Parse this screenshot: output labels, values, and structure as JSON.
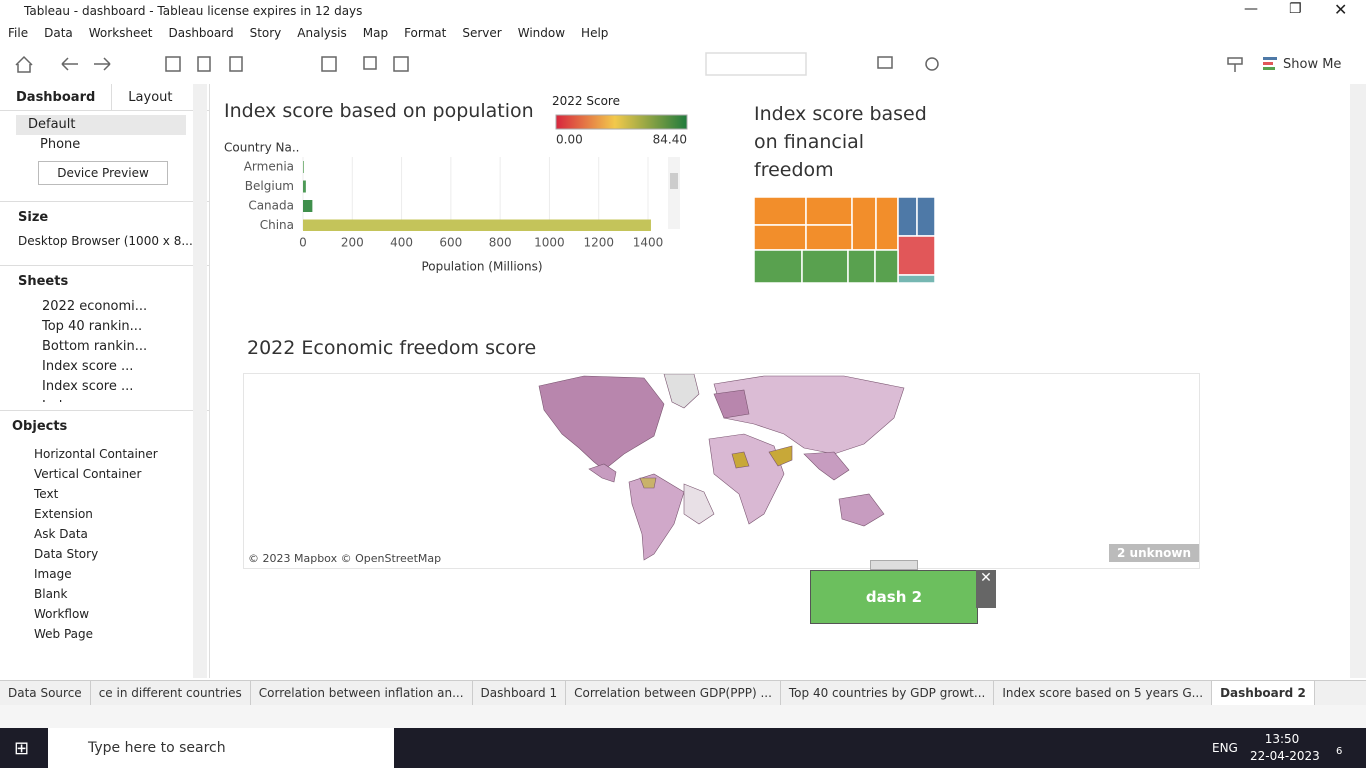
{
  "window": {
    "title": "Tableau - dashboard - Tableau license expires in 12 days"
  },
  "menu": [
    "File",
    "Data",
    "Worksheet",
    "Dashboard",
    "Story",
    "Analysis",
    "Map",
    "Format",
    "Server",
    "Window",
    "Help"
  ],
  "toolbar": {
    "show_me": "Show Me"
  },
  "side_panel": {
    "tabs": [
      "Dashboard",
      "Layout"
    ],
    "devices": [
      "Default",
      "Phone"
    ],
    "device_preview": "Device Preview",
    "size_heading": "Size",
    "size_value": "Desktop Browser (1000 x 8...",
    "sheets_heading": "Sheets",
    "sheets": [
      "2022 economi...",
      "Top  40 rankin...",
      "Bottom rankin...",
      "Index score ...",
      "Index score ...",
      "Index score"
    ],
    "objects_heading": "Objects",
    "objects": [
      "Horizontal Container",
      "Vertical Container",
      "Text",
      "Extension",
      "Ask Data",
      "Data Story",
      "Image",
      "Blank",
      "Workflow",
      "Web Page"
    ]
  },
  "population_chart": {
    "type": "bar",
    "orientation": "horizontal",
    "title": "Index score based on population",
    "row_header": "Country Na..",
    "categories": [
      "Armenia",
      "Belgium",
      "Canada",
      "China"
    ],
    "values": [
      3,
      11.6,
      38,
      1412
    ],
    "colors": [
      "#5aa05a",
      "#4e9a57",
      "#3f8f4c",
      "#c4c45a"
    ],
    "xlim": [
      0,
      1470
    ],
    "xticks": [
      0,
      200,
      400,
      600,
      800,
      1000,
      1200,
      1400
    ],
    "xlabel": "Population (Millions)",
    "grid": true
  },
  "score_legend": {
    "title": "2022 Score",
    "ticks": [
      {
        "value": 0,
        "label": "0.00"
      },
      {
        "value": 84.4,
        "label": "84.40"
      }
    ]
  },
  "treemap": {
    "title": "Index score based on financial freedom"
  },
  "map": {
    "title": "2022 Economic freedom score",
    "attribution": "© 2023 Mapbox © OpenStreetMap",
    "unknown": "2 unknown"
  },
  "floating": {
    "label": "dash 2"
  },
  "sheet_tabs": [
    "Data Source",
    "ce in different countries",
    "Correlation between inflation an...",
    "Dashboard 1",
    "Correlation between GDP(PPP) ...",
    "Top 40 countries by GDP growt...",
    "Index score based on 5 years G...",
    "Dashboard 2"
  ],
  "taskbar": {
    "search": "Type here to search",
    "lang": "ENG",
    "time": "13:50",
    "date": "22-04-2023",
    "notifications": "6"
  }
}
